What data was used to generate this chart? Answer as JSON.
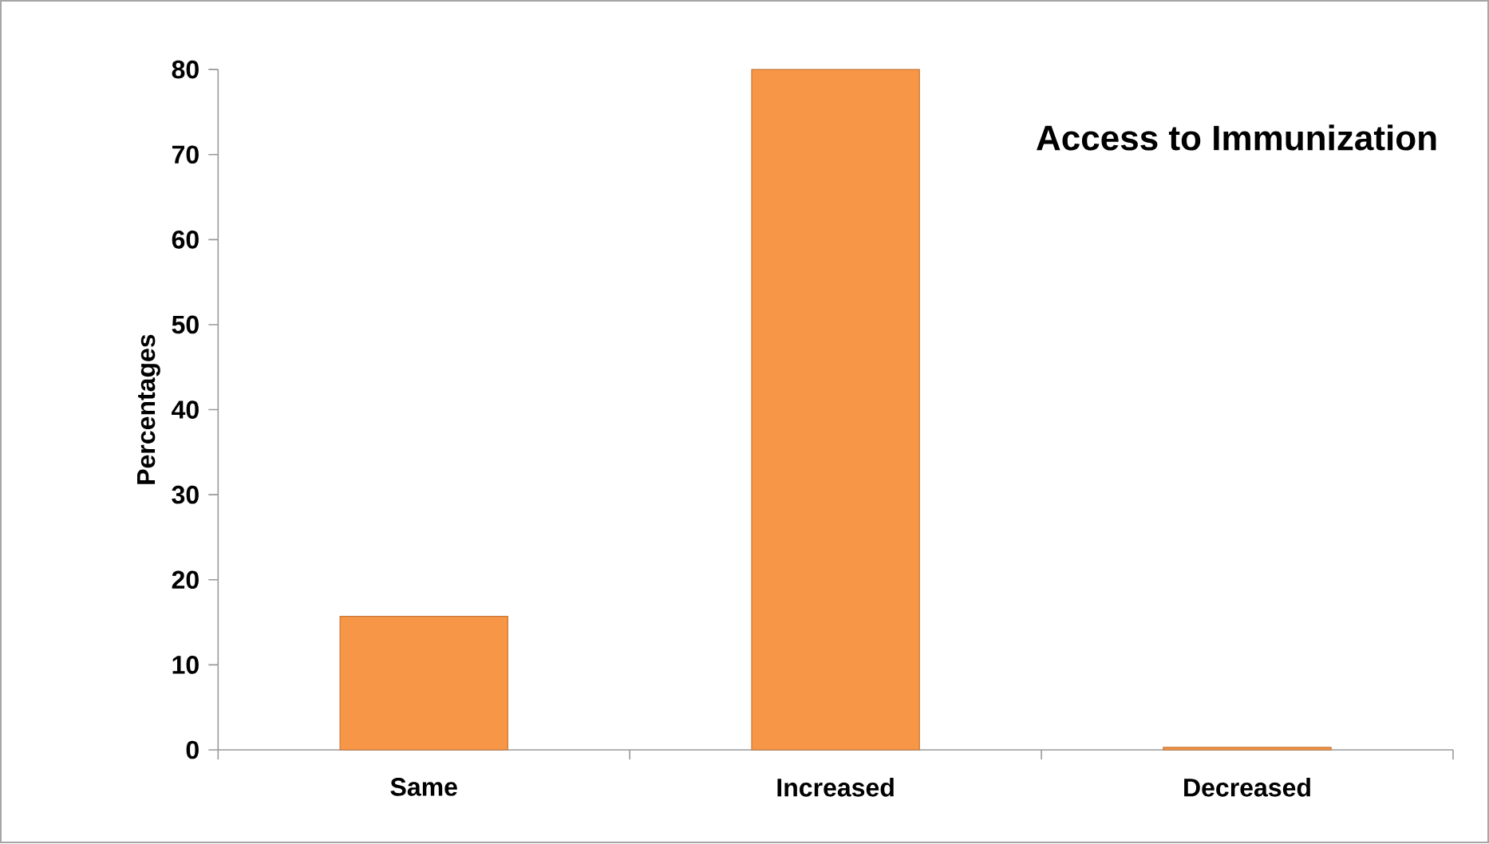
{
  "chart_data": {
    "type": "bar",
    "title": "Access to Immunization",
    "ylabel": "Percentages",
    "categories": [
      "Same",
      "Increased",
      "Decreased"
    ],
    "values": [
      15.7,
      80,
      0.3
    ],
    "color": "#f79646",
    "ylim": [
      0,
      80
    ],
    "yticks": [
      0,
      10,
      20,
      30,
      40,
      50,
      60,
      70,
      80
    ],
    "grid": false
  }
}
